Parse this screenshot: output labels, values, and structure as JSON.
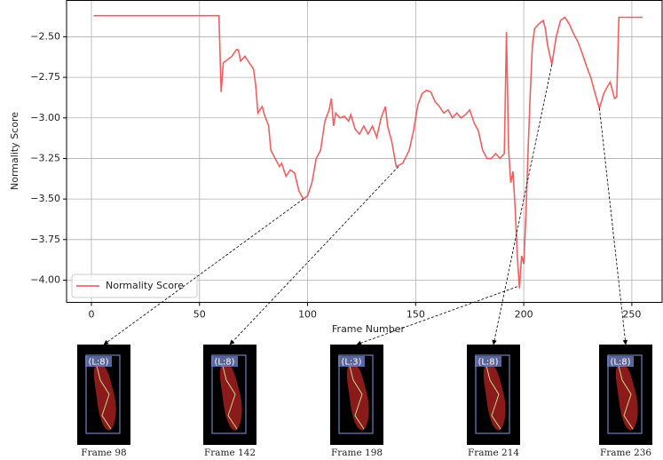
{
  "chart_data": {
    "type": "line",
    "xlabel": "Frame Number",
    "ylabel": "Normality Score",
    "xlim": [
      -11.5,
      264
    ],
    "ylim": [
      -4.137,
      -2.276
    ],
    "xticks": [
      0,
      50,
      100,
      150,
      200,
      250
    ],
    "yticks": [
      {
        "value": -2.5,
        "label": "−2.50"
      },
      {
        "value": -2.75,
        "label": "−2.75"
      },
      {
        "value": -3.0,
        "label": "−3.00"
      },
      {
        "value": -3.25,
        "label": "−3.25"
      },
      {
        "value": -3.5,
        "label": "−3.50"
      },
      {
        "value": -3.75,
        "label": "−3.75"
      },
      {
        "value": -4.0,
        "label": "−4.00"
      }
    ],
    "grid": true,
    "legend": "lower left",
    "series": [
      {
        "name": "Normality Score",
        "color": "#f24e4e",
        "x": [
          1,
          59,
          60,
          61,
          63,
          65,
          67,
          68,
          69,
          71,
          73,
          75,
          76,
          77,
          78,
          79,
          80,
          82,
          83,
          85,
          87,
          88,
          90,
          92,
          94,
          96,
          98,
          100,
          102,
          104,
          106,
          108,
          110,
          111,
          112,
          113,
          115,
          117,
          119,
          120,
          122,
          124,
          126,
          128,
          130,
          132,
          134,
          136,
          137,
          139,
          141,
          144,
          147,
          149,
          151,
          153,
          155,
          157,
          159,
          161,
          163,
          165,
          167,
          169,
          171,
          173,
          175,
          177,
          179,
          181,
          183,
          185,
          187,
          189,
          191,
          192,
          193,
          194,
          195,
          196,
          197,
          198,
          199,
          200,
          201,
          202,
          203,
          204,
          205,
          207,
          209,
          210,
          211,
          213,
          215,
          217,
          219,
          221,
          223,
          225,
          227,
          229,
          231,
          233,
          235,
          237,
          239,
          240,
          242,
          243,
          244,
          255
        ],
        "values": [
          -2.37,
          -2.37,
          -2.84,
          -2.66,
          -2.64,
          -2.62,
          -2.58,
          -2.58,
          -2.65,
          -2.62,
          -2.66,
          -2.7,
          -2.8,
          -2.97,
          -2.95,
          -2.93,
          -2.98,
          -3.05,
          -3.2,
          -3.25,
          -3.3,
          -3.28,
          -3.36,
          -3.32,
          -3.34,
          -3.45,
          -3.5,
          -3.48,
          -3.4,
          -3.25,
          -3.2,
          -3.02,
          -2.95,
          -2.88,
          -3.05,
          -2.97,
          -3.0,
          -2.99,
          -3.02,
          -2.98,
          -3.07,
          -3.1,
          -3.05,
          -3.1,
          -3.05,
          -3.12,
          -3.0,
          -2.93,
          -3.05,
          -3.15,
          -3.3,
          -3.28,
          -3.2,
          -3.08,
          -2.92,
          -2.85,
          -2.83,
          -2.84,
          -2.9,
          -2.93,
          -2.97,
          -2.95,
          -3.0,
          -2.97,
          -3.0,
          -2.98,
          -2.95,
          -3.03,
          -3.08,
          -3.2,
          -3.25,
          -3.25,
          -3.22,
          -3.25,
          -3.22,
          -2.47,
          -3.2,
          -3.4,
          -3.33,
          -3.55,
          -3.85,
          -4.05,
          -3.85,
          -3.9,
          -3.6,
          -3.2,
          -2.85,
          -2.55,
          -2.45,
          -2.42,
          -2.4,
          -2.45,
          -2.55,
          -2.67,
          -2.5,
          -2.4,
          -2.38,
          -2.42,
          -2.48,
          -2.53,
          -2.6,
          -2.68,
          -2.75,
          -2.85,
          -2.94,
          -2.85,
          -2.8,
          -2.78,
          -2.88,
          -2.87,
          -2.38,
          -2.38
        ]
      }
    ],
    "annotations": [
      {
        "label": "Frame 98",
        "tag": "(L:8)",
        "x": 98,
        "y": -3.5
      },
      {
        "label": "Frame 142",
        "tag": "(L:8)",
        "x": 142,
        "y": -3.3
      },
      {
        "label": "Frame 198",
        "tag": "(L:3)",
        "x": 197,
        "y": -4.04
      },
      {
        "label": "Frame 214",
        "tag": "(L:8)",
        "x": 213,
        "y": -2.67
      },
      {
        "label": "Frame 236",
        "tag": "(L:8)",
        "x": 235,
        "y": -2.94
      }
    ]
  }
}
